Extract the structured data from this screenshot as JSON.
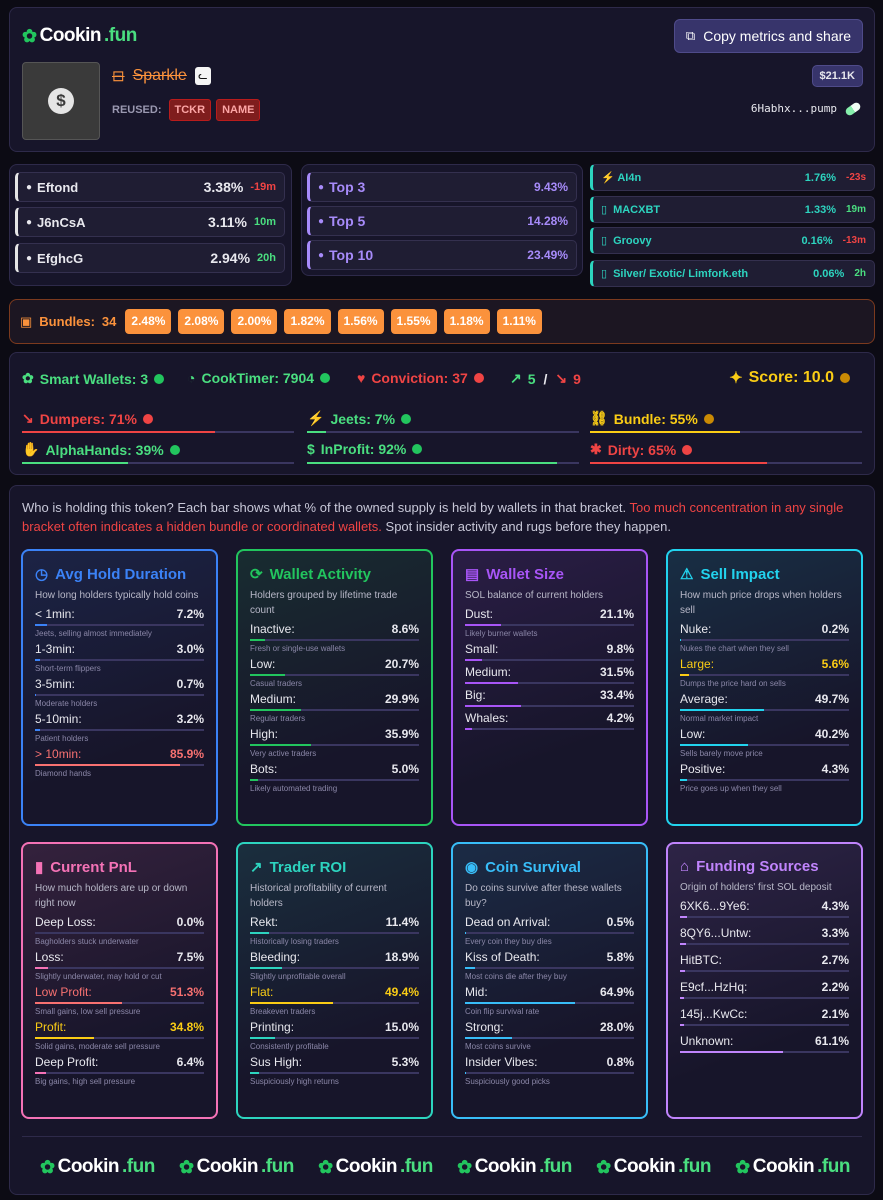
{
  "header": {
    "logo": {
      "name": "Cookin",
      "tld": ".fun"
    },
    "share_button": "Copy metrics and share",
    "token_name": "Sparkle",
    "market_cap": "$21.1K",
    "reused_label": "REUSED:",
    "reused_tags": [
      "TCKR",
      "NAME"
    ],
    "address": "6Habhx...pump"
  },
  "holders": [
    {
      "name": "Eftond",
      "pct": "3.38%",
      "time": "-19m",
      "time_color": "#ef4444"
    },
    {
      "name": "J6nCsA",
      "pct": "3.11%",
      "time": "10m",
      "time_color": "#4ade80"
    },
    {
      "name": "EfghcG",
      "pct": "2.94%",
      "time": "20h",
      "time_color": "#4ade80"
    }
  ],
  "top_groups": [
    {
      "label": "Top 3",
      "pct": "9.43%"
    },
    {
      "label": "Top 5",
      "pct": "14.28%"
    },
    {
      "label": "Top 10",
      "pct": "23.49%"
    }
  ],
  "kols": [
    {
      "name": "⚡ AI4n",
      "pct": "1.76%",
      "time": "-23s",
      "time_color": "#ef4444"
    },
    {
      "name": "MACXBT",
      "pct": "1.33%",
      "time": "19m",
      "time_color": "#4ade80"
    },
    {
      "name": "Groovy",
      "pct": "0.16%",
      "time": "-13m",
      "time_color": "#ef4444"
    },
    {
      "name": "Silver/ Exotic/ Limfork.eth",
      "pct": "0.06%",
      "time": "2h",
      "time_color": "#4ade80"
    }
  ],
  "bundles": {
    "label": "Bundles:",
    "count": "34",
    "values": [
      "2.48%",
      "2.08%",
      "2.00%",
      "1.82%",
      "1.56%",
      "1.55%",
      "1.18%",
      "1.11%"
    ]
  },
  "metrics": {
    "smart_wallets": "Smart Wallets: 3",
    "cooktimer": "CookTimer: 7904",
    "conviction": "Conviction: 37",
    "up": "5",
    "sep": "/",
    "down": "9",
    "score": "Score: 10.0",
    "bars": [
      {
        "label": "Dumpers: 71%",
        "color": "#ef4444",
        "pct": 71
      },
      {
        "label": "Jeets: 7%",
        "color": "#4ade80",
        "pct": 7
      },
      {
        "label": "Bundle: 55%",
        "color": "#facc15",
        "pct": 55
      },
      {
        "label": "AlphaHands: 39%",
        "color": "#4ade80",
        "pct": 39
      },
      {
        "label": "InProfit: 92%",
        "color": "#4ade80",
        "pct": 92
      },
      {
        "label": "Dirty: 65%",
        "color": "#ef4444",
        "pct": 65
      }
    ]
  },
  "intro": {
    "text1": "Who is holding this token? Each bar shows what % of the owned supply is held by wallets in that bracket. ",
    "text_red": "Too much concentration in any single bracket often indicates a hidden bundle or coordinated wallets.",
    "text2": " Spot insider activity and rugs before they happen."
  },
  "cards": [
    {
      "title": "Avg Hold Duration",
      "icon": "clock-icon",
      "color": "#3b82f6",
      "desc": "How long holders typically hold coins",
      "rows": [
        {
          "label": "< 1min:",
          "value": "7.2%",
          "sub": "Jeets, selling almost immediately",
          "pct": 7.2
        },
        {
          "label": "1-3min:",
          "value": "3.0%",
          "sub": "Short-term flippers",
          "pct": 3.0
        },
        {
          "label": "3-5min:",
          "value": "0.7%",
          "sub": "Moderate holders",
          "pct": 0.7
        },
        {
          "label": "5-10min:",
          "value": "3.2%",
          "sub": "Patient holders",
          "pct": 3.2
        },
        {
          "label": "> 10min:",
          "value": "85.9%",
          "sub": "Diamond hands",
          "pct": 85.9,
          "hl": "#f87171"
        }
      ]
    },
    {
      "title": "Wallet Activity",
      "icon": "refresh-icon",
      "color": "#22c55e",
      "desc": "Holders grouped by lifetime trade count",
      "rows": [
        {
          "label": "Inactive:",
          "value": "8.6%",
          "sub": "Fresh or single-use wallets",
          "pct": 8.6
        },
        {
          "label": "Low:",
          "value": "20.7%",
          "sub": "Casual traders",
          "pct": 20.7
        },
        {
          "label": "Medium:",
          "value": "29.9%",
          "sub": "Regular traders",
          "pct": 29.9
        },
        {
          "label": "High:",
          "value": "35.9%",
          "sub": "Very active traders",
          "pct": 35.9
        },
        {
          "label": "Bots:",
          "value": "5.0%",
          "sub": "Likely automated trading",
          "pct": 5.0
        }
      ]
    },
    {
      "title": "Wallet Size",
      "icon": "wallet-icon",
      "color": "#a855f7",
      "desc": "SOL balance of current holders",
      "rows": [
        {
          "label": "Dust:",
          "value": "21.1%",
          "sub": "Likely burner wallets",
          "pct": 21.1
        },
        {
          "label": "Small:",
          "value": "9.8%",
          "sub": "",
          "pct": 9.8
        },
        {
          "label": "Medium:",
          "value": "31.5%",
          "sub": "",
          "pct": 31.5
        },
        {
          "label": "Big:",
          "value": "33.4%",
          "sub": "",
          "pct": 33.4
        },
        {
          "label": "Whales:",
          "value": "4.2%",
          "sub": "",
          "pct": 4.2
        }
      ]
    },
    {
      "title": "Sell Impact",
      "icon": "warning-icon",
      "color": "#22d3ee",
      "desc": "How much price drops when holders sell",
      "rows": [
        {
          "label": "Nuke:",
          "value": "0.2%",
          "sub": "Nukes the chart when they sell",
          "pct": 0.2
        },
        {
          "label": "Large:",
          "value": "5.6%",
          "sub": "Dumps the price hard on sells",
          "pct": 5.6,
          "hl": "#facc15"
        },
        {
          "label": "Average:",
          "value": "49.7%",
          "sub": "Normal market impact",
          "pct": 49.7
        },
        {
          "label": "Low:",
          "value": "40.2%",
          "sub": "Sells barely move price",
          "pct": 40.2
        },
        {
          "label": "Positive:",
          "value": "4.3%",
          "sub": "Price goes up when they sell",
          "pct": 4.3
        }
      ]
    },
    {
      "title": "Current PnL",
      "icon": "bar-chart-icon",
      "color": "#f472b6",
      "desc": "How much holders are up or down right now",
      "rows": [
        {
          "label": "Deep Loss:",
          "value": "0.0%",
          "sub": "Bagholders stuck underwater",
          "pct": 0
        },
        {
          "label": "Loss:",
          "value": "7.5%",
          "sub": "Slightly underwater, may hold or cut",
          "pct": 7.5
        },
        {
          "label": "Low Profit:",
          "value": "51.3%",
          "sub": "Small gains, low sell pressure",
          "pct": 51.3,
          "hl": "#f87171"
        },
        {
          "label": "Profit:",
          "value": "34.8%",
          "sub": "Solid gains, moderate sell pressure",
          "pct": 34.8,
          "hl": "#facc15"
        },
        {
          "label": "Deep Profit:",
          "value": "6.4%",
          "sub": "Big gains, high sell pressure",
          "pct": 6.4
        }
      ]
    },
    {
      "title": "Trader ROI",
      "icon": "trending-up-icon",
      "color": "#2dd4bf",
      "desc": "Historical profitability of current holders",
      "rows": [
        {
          "label": "Rekt:",
          "value": "11.4%",
          "sub": "Historically losing traders",
          "pct": 11.4
        },
        {
          "label": "Bleeding:",
          "value": "18.9%",
          "sub": "Slightly unprofitable overall",
          "pct": 18.9
        },
        {
          "label": "Flat:",
          "value": "49.4%",
          "sub": "Breakeven traders",
          "pct": 49.4,
          "hl": "#facc15"
        },
        {
          "label": "Printing:",
          "value": "15.0%",
          "sub": "Consistently profitable",
          "pct": 15.0
        },
        {
          "label": "Sus High:",
          "value": "5.3%",
          "sub": "Suspiciously high returns",
          "pct": 5.3
        }
      ]
    },
    {
      "title": "Coin Survival",
      "icon": "radio-icon",
      "color": "#38bdf8",
      "desc": "Do coins survive after these wallets buy?",
      "rows": [
        {
          "label": "Dead on Arrival:",
          "value": "0.5%",
          "sub": "Every coin they buy dies",
          "pct": 0.5
        },
        {
          "label": "Kiss of Death:",
          "value": "5.8%",
          "sub": "Most coins die after they buy",
          "pct": 5.8
        },
        {
          "label": "Mid:",
          "value": "64.9%",
          "sub": "Coin flip survival rate",
          "pct": 64.9
        },
        {
          "label": "Strong:",
          "value": "28.0%",
          "sub": "Most coins survive",
          "pct": 28.0
        },
        {
          "label": "Insider Vibes:",
          "value": "0.8%",
          "sub": "Suspiciously good picks",
          "pct": 0.8
        }
      ]
    },
    {
      "title": "Funding Sources",
      "icon": "bank-icon",
      "color": "#c084fc",
      "desc": "Origin of holders' first SOL deposit",
      "rows": [
        {
          "label": "6XK6...9Ye6:",
          "value": "4.3%",
          "sub": "",
          "pct": 4.3
        },
        {
          "label": "8QY6...Untw:",
          "value": "3.3%",
          "sub": "",
          "pct": 3.3
        },
        {
          "label": "HitBTC:",
          "value": "2.7%",
          "sub": "",
          "pct": 2.7
        },
        {
          "label": "E9cf...HzHq:",
          "value": "2.2%",
          "sub": "",
          "pct": 2.2
        },
        {
          "label": "145j...KwCc:",
          "value": "2.1%",
          "sub": "",
          "pct": 2.1
        },
        {
          "label": "Unknown:",
          "value": "61.1%",
          "sub": "",
          "pct": 61.1
        }
      ]
    }
  ]
}
